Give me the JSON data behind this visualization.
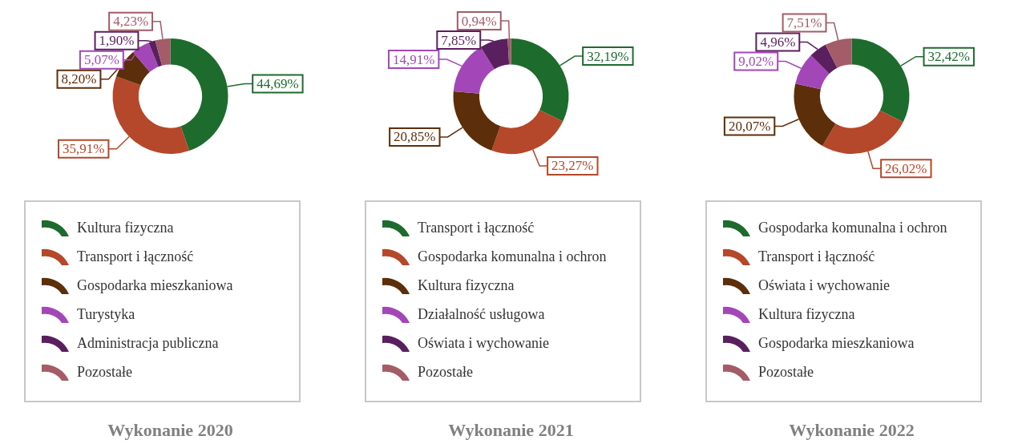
{
  "chart_data": [
    {
      "type": "donut",
      "title": "Wykonanie 2020",
      "legend": "bottom",
      "categories": [
        "Kultura fizyczna",
        "Transport i łączność",
        "Gospodarka mieszkaniowa",
        "Turystyka",
        "Administracja publiczna",
        "Pozostałe"
      ],
      "values": [
        44.69,
        35.91,
        8.2,
        5.07,
        1.9,
        4.23
      ],
      "value_labels": [
        "44,69%",
        "35,91%",
        "8,20%",
        "5,07%",
        "1,90%",
        "4,23%"
      ],
      "colors": [
        "#1e6b2e",
        "#b5472a",
        "#5c2e0a",
        "#a347b8",
        "#5a1f5e",
        "#a35c68"
      ]
    },
    {
      "type": "donut",
      "title": "Wykonanie 2021",
      "legend": "bottom",
      "categories": [
        "Transport i łączność",
        "Gospodarka komunalna i ochron",
        "Kultura fizyczna",
        "Działalność usługowa",
        "Oświata i wychowanie",
        "Pozostałe"
      ],
      "values": [
        32.19,
        23.27,
        20.85,
        14.91,
        7.85,
        0.94
      ],
      "value_labels": [
        "32,19%",
        "23,27%",
        "20,85%",
        "14,91%",
        "7,85%",
        "0,94%"
      ],
      "colors": [
        "#1e6b2e",
        "#b5472a",
        "#5c2e0a",
        "#a347b8",
        "#5a1f5e",
        "#a35c68"
      ]
    },
    {
      "type": "donut",
      "title": "Wykonanie 2022",
      "legend": "bottom",
      "categories": [
        "Gospodarka komunalna i ochron",
        "Transport i łączność",
        "Oświata i wychowanie",
        "Kultura fizyczna",
        "Gospodarka mieszkaniowa",
        "Pozostałe"
      ],
      "values": [
        32.42,
        26.02,
        20.07,
        9.02,
        4.96,
        7.51
      ],
      "value_labels": [
        "32,42%",
        "26,02%",
        "20,07%",
        "9,02%",
        "4,96%",
        "7,51%"
      ],
      "colors": [
        "#1e6b2e",
        "#b5472a",
        "#5c2e0a",
        "#a347b8",
        "#5a1f5e",
        "#a35c68"
      ]
    }
  ]
}
